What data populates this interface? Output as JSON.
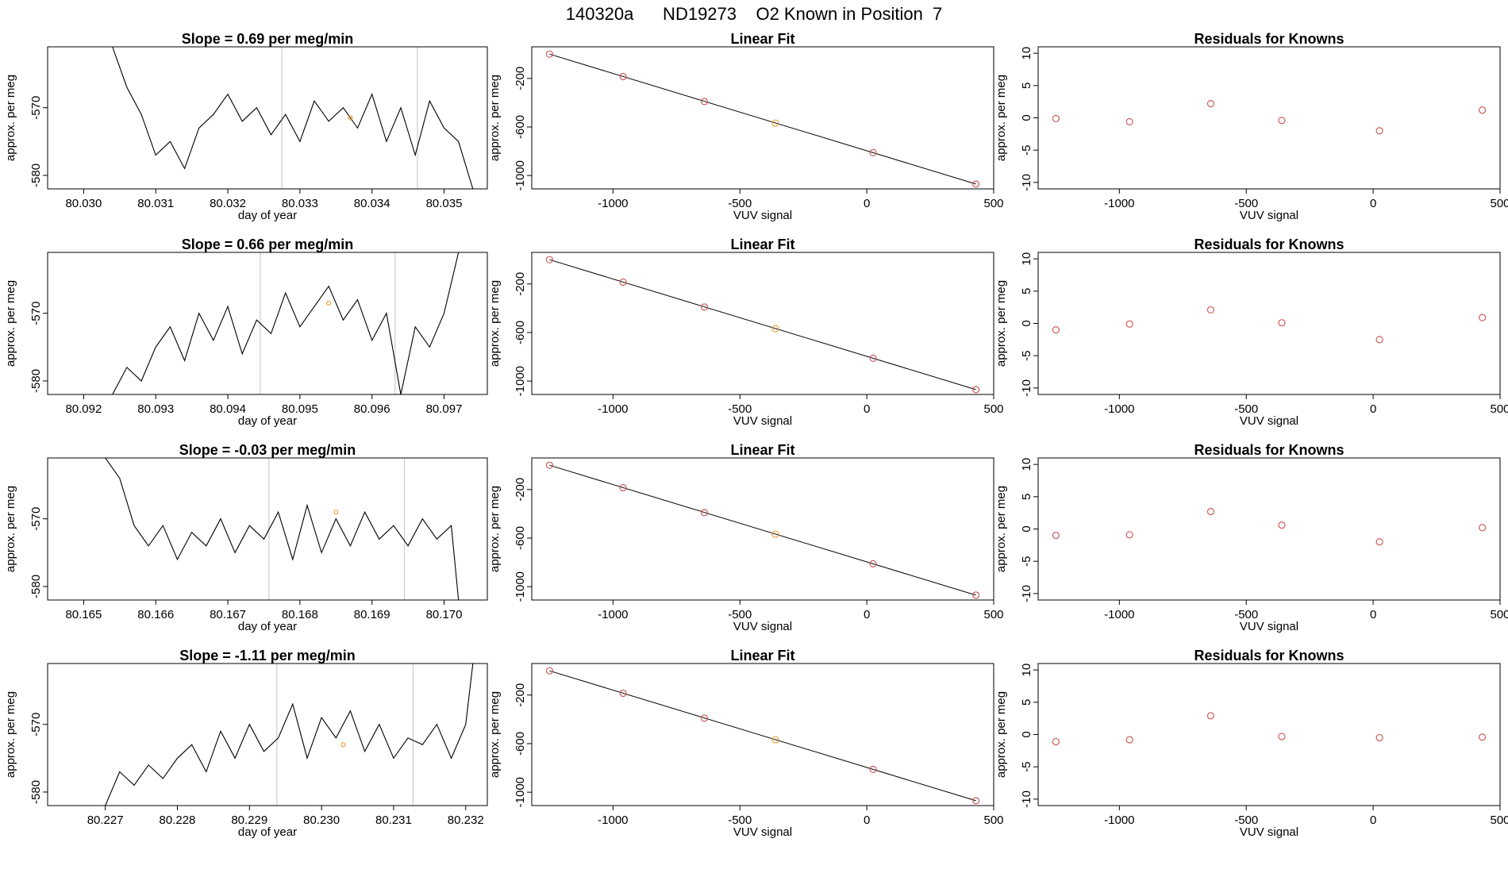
{
  "header": {
    "title": "140320a      ND19273    O2 Known in Position  7"
  },
  "colors": {
    "line": "#000000",
    "points": "#cd5c5c",
    "highlight": "#e8a33a",
    "vline": "#cccccc"
  },
  "chart_data": [
    {
      "type": "line",
      "title": "Slope =  0.69  per meg/min",
      "xlabel": "day of year",
      "ylabel": "approx. per meg",
      "xlim": [
        80.0295,
        80.0356
      ],
      "ylim": [
        -582,
        -561
      ],
      "xticks": [
        80.03,
        80.031,
        80.032,
        80.033,
        80.034,
        80.035
      ],
      "xtick_labels": [
        "80.030",
        "80.031",
        "80.032",
        "80.033",
        "80.034",
        "80.035"
      ],
      "yticks": [
        -570,
        -580
      ],
      "ytick_labels": [
        "-570",
        "-580"
      ],
      "vlines": [
        80.03275,
        80.03463
      ],
      "marker": {
        "x": 80.0337,
        "y": -571.5
      },
      "x": [
        80.0304,
        80.0306,
        80.0308,
        80.031,
        80.0312,
        80.0314,
        80.0316,
        80.0318,
        80.032,
        80.0322,
        80.0324,
        80.0326,
        80.0328,
        80.033,
        80.0332,
        80.0334,
        80.0336,
        80.0338,
        80.034,
        80.0342,
        80.0344,
        80.0346,
        80.0348,
        80.035,
        80.0352,
        80.0354
      ],
      "y": [
        -561,
        -567,
        -571,
        -577,
        -575,
        -579,
        -573,
        -571,
        -568,
        -572,
        -570,
        -574,
        -571,
        -575,
        -569,
        -572,
        -570,
        -573,
        -568,
        -575,
        -570,
        -577,
        -569,
        -573,
        -575,
        -582
      ]
    },
    {
      "type": "line",
      "title": "Slope =  0.66  per meg/min",
      "xlabel": "day of year",
      "ylabel": "approx. per meg",
      "xlim": [
        80.0915,
        80.0976
      ],
      "ylim": [
        -582,
        -561
      ],
      "xticks": [
        80.092,
        80.093,
        80.094,
        80.095,
        80.096,
        80.097
      ],
      "xtick_labels": [
        "80.092",
        "80.093",
        "80.094",
        "80.095",
        "80.096",
        "80.097"
      ],
      "yticks": [
        -570,
        -580
      ],
      "ytick_labels": [
        "-570",
        "-580"
      ],
      "vlines": [
        80.09445,
        80.09632
      ],
      "marker": {
        "x": 80.0954,
        "y": -568.5
      },
      "x": [
        80.0924,
        80.0926,
        80.0928,
        80.093,
        80.0932,
        80.0934,
        80.0936,
        80.0938,
        80.094,
        80.0942,
        80.0944,
        80.0946,
        80.0948,
        80.095,
        80.0952,
        80.0954,
        80.0956,
        80.0958,
        80.096,
        80.0962,
        80.0964,
        80.0966,
        80.0968,
        80.097,
        80.0972
      ],
      "y": [
        -582,
        -578,
        -580,
        -575,
        -572,
        -577,
        -570,
        -574,
        -569,
        -576,
        -571,
        -573,
        -567,
        -572,
        -569,
        -566,
        -571,
        -568,
        -574,
        -570,
        -582,
        -572,
        -575,
        -570,
        -561
      ]
    },
    {
      "type": "line",
      "title": "Slope =  -0.03  per meg/min",
      "xlabel": "day of year",
      "ylabel": "approx. per meg",
      "xlim": [
        80.1645,
        80.1706
      ],
      "ylim": [
        -582,
        -561
      ],
      "xticks": [
        80.165,
        80.166,
        80.167,
        80.168,
        80.169,
        80.17
      ],
      "xtick_labels": [
        "80.165",
        "80.166",
        "80.167",
        "80.168",
        "80.169",
        "80.170"
      ],
      "yticks": [
        -570,
        -580
      ],
      "ytick_labels": [
        "-570",
        "-580"
      ],
      "vlines": [
        80.16757,
        80.16945
      ],
      "marker": {
        "x": 80.1685,
        "y": -569
      },
      "x": [
        80.1653,
        80.1655,
        80.1657,
        80.1659,
        80.1661,
        80.1663,
        80.1665,
        80.1667,
        80.1669,
        80.1671,
        80.1673,
        80.1675,
        80.1677,
        80.1679,
        80.1681,
        80.1683,
        80.1685,
        80.1687,
        80.1689,
        80.1691,
        80.1693,
        80.1695,
        80.1697,
        80.1699,
        80.1701,
        80.1702
      ],
      "y": [
        -561,
        -564,
        -571,
        -574,
        -571,
        -576,
        -572,
        -574,
        -570,
        -575,
        -571,
        -573,
        -569,
        -576,
        -568,
        -575,
        -570,
        -574,
        -569,
        -573,
        -571,
        -574,
        -570,
        -573,
        -571,
        -582
      ]
    },
    {
      "type": "line",
      "title": "Slope =  -1.11  per meg/min",
      "xlabel": "day of year",
      "ylabel": "approx. per meg",
      "xlim": [
        80.2262,
        80.2323
      ],
      "ylim": [
        -582,
        -561
      ],
      "xticks": [
        80.227,
        80.228,
        80.229,
        80.23,
        80.231,
        80.232
      ],
      "xtick_labels": [
        "80.227",
        "80.228",
        "80.229",
        "80.230",
        "80.231",
        "80.232"
      ],
      "yticks": [
        -570,
        -580
      ],
      "ytick_labels": [
        "-570",
        "-580"
      ],
      "vlines": [
        80.22938,
        80.23127
      ],
      "marker": {
        "x": 80.2303,
        "y": -573
      },
      "x": [
        80.227,
        80.2272,
        80.2274,
        80.2276,
        80.2278,
        80.228,
        80.2282,
        80.2284,
        80.2286,
        80.2288,
        80.229,
        80.2292,
        80.2294,
        80.2296,
        80.2298,
        80.23,
        80.2302,
        80.2304,
        80.2306,
        80.2308,
        80.231,
        80.2312,
        80.2314,
        80.2316,
        80.2318,
        80.232,
        80.2321
      ],
      "y": [
        -582,
        -577,
        -579,
        -576,
        -578,
        -575,
        -573,
        -577,
        -571,
        -575,
        -570,
        -574,
        -572,
        -567,
        -575,
        -569,
        -572,
        -568,
        -574,
        -570,
        -575,
        -572,
        -573,
        -570,
        -575,
        -570,
        -561
      ]
    },
    {
      "type": "scatter",
      "title": "Linear Fit",
      "xlabel": "VUV signal",
      "ylabel": "approx. per meg",
      "xlim": [
        -1320,
        500
      ],
      "ylim": [
        -1110,
        60
      ],
      "xticks": [
        -1000,
        -500,
        0,
        500
      ],
      "xtick_labels": [
        "-1000",
        "-500",
        "0",
        "500"
      ],
      "yticks": [
        -200,
        -600,
        -1000
      ],
      "ytick_labels": [
        "-200",
        "-600",
        "-1000"
      ],
      "fit_line": [
        [
          -1250,
          0
        ],
        [
          430,
          -1070
        ]
      ],
      "highlight_index": 3,
      "x": [
        -1250,
        -960,
        -640,
        -360,
        25,
        430
      ],
      "y": [
        0,
        -185,
        -390,
        -568,
        -812,
        -1070
      ]
    },
    {
      "type": "scatter",
      "title": "Linear Fit",
      "xlabel": "VUV signal",
      "ylabel": "approx. per meg",
      "xlim": [
        -1320,
        500
      ],
      "ylim": [
        -1110,
        60
      ],
      "xticks": [
        -1000,
        -500,
        0,
        500
      ],
      "xtick_labels": [
        "-1000",
        "-500",
        "0",
        "500"
      ],
      "yticks": [
        -200,
        -600,
        -1000
      ],
      "ytick_labels": [
        "-200",
        "-600",
        "-1000"
      ],
      "fit_line": [
        [
          -1250,
          0
        ],
        [
          430,
          -1070
        ]
      ],
      "highlight_index": 3,
      "x": [
        -1250,
        -960,
        -640,
        -360,
        25,
        430
      ],
      "y": [
        0,
        -185,
        -390,
        -568,
        -812,
        -1070
      ]
    },
    {
      "type": "scatter",
      "title": "Linear Fit",
      "xlabel": "VUV signal",
      "ylabel": "approx. per meg",
      "xlim": [
        -1320,
        500
      ],
      "ylim": [
        -1110,
        60
      ],
      "xticks": [
        -1000,
        -500,
        0,
        500
      ],
      "xtick_labels": [
        "-1000",
        "-500",
        "0",
        "500"
      ],
      "yticks": [
        -200,
        -600,
        -1000
      ],
      "ytick_labels": [
        "-200",
        "-600",
        "-1000"
      ],
      "fit_line": [
        [
          -1250,
          0
        ],
        [
          430,
          -1070
        ]
      ],
      "highlight_index": 3,
      "x": [
        -1250,
        -960,
        -640,
        -360,
        25,
        430
      ],
      "y": [
        0,
        -185,
        -390,
        -568,
        -812,
        -1070
      ]
    },
    {
      "type": "scatter",
      "title": "Linear Fit",
      "xlabel": "VUV signal",
      "ylabel": "approx. per meg",
      "xlim": [
        -1320,
        500
      ],
      "ylim": [
        -1110,
        60
      ],
      "xticks": [
        -1000,
        -500,
        0,
        500
      ],
      "xtick_labels": [
        "-1000",
        "-500",
        "0",
        "500"
      ],
      "yticks": [
        -200,
        -600,
        -1000
      ],
      "ytick_labels": [
        "-200",
        "-600",
        "-1000"
      ],
      "fit_line": [
        [
          -1250,
          0
        ],
        [
          430,
          -1070
        ]
      ],
      "highlight_index": 3,
      "x": [
        -1250,
        -960,
        -640,
        -360,
        25,
        430
      ],
      "y": [
        0,
        -185,
        -390,
        -568,
        -812,
        -1070
      ]
    },
    {
      "type": "scatter",
      "title": "Residuals for Knowns",
      "xlabel": "VUV signal",
      "ylabel": "approx. per meg",
      "xlim": [
        -1320,
        500
      ],
      "ylim": [
        -11,
        11
      ],
      "xticks": [
        -1000,
        -500,
        0,
        500
      ],
      "xtick_labels": [
        "-1000",
        "-500",
        "0",
        "500"
      ],
      "yticks": [
        10,
        5,
        0,
        -5,
        -10
      ],
      "ytick_labels": [
        "10",
        "5",
        "0",
        "-5",
        "-10"
      ],
      "x": [
        -1250,
        -960,
        -640,
        -360,
        25,
        430
      ],
      "y": [
        -0.1,
        -0.6,
        2.2,
        -0.4,
        -2.0,
        1.2
      ]
    },
    {
      "type": "scatter",
      "title": "Residuals for Knowns",
      "xlabel": "VUV signal",
      "ylabel": "approx. per meg",
      "xlim": [
        -1320,
        500
      ],
      "ylim": [
        -11,
        11
      ],
      "xticks": [
        -1000,
        -500,
        0,
        500
      ],
      "xtick_labels": [
        "-1000",
        "-500",
        "0",
        "500"
      ],
      "yticks": [
        10,
        5,
        0,
        -5,
        -10
      ],
      "ytick_labels": [
        "10",
        "5",
        "0",
        "-5",
        "-10"
      ],
      "x": [
        -1250,
        -960,
        -640,
        -360,
        25,
        430
      ],
      "y": [
        -1.0,
        -0.1,
        2.1,
        0.1,
        -2.5,
        0.9
      ]
    },
    {
      "type": "scatter",
      "title": "Residuals for Knowns",
      "xlabel": "VUV signal",
      "ylabel": "approx. per meg",
      "xlim": [
        -1320,
        500
      ],
      "ylim": [
        -11,
        11
      ],
      "xticks": [
        -1000,
        -500,
        0,
        500
      ],
      "xtick_labels": [
        "-1000",
        "-500",
        "0",
        "500"
      ],
      "yticks": [
        10,
        5,
        0,
        -5,
        -10
      ],
      "ytick_labels": [
        "10",
        "5",
        "0",
        "-5",
        "-10"
      ],
      "x": [
        -1250,
        -960,
        -640,
        -360,
        25,
        430
      ],
      "y": [
        -1.0,
        -0.9,
        2.7,
        0.6,
        -2.0,
        0.2
      ]
    },
    {
      "type": "scatter",
      "title": "Residuals for Knowns",
      "xlabel": "VUV signal",
      "ylabel": "approx. per meg",
      "xlim": [
        -1320,
        500
      ],
      "ylim": [
        -11,
        11
      ],
      "xticks": [
        -1000,
        -500,
        0,
        500
      ],
      "xtick_labels": [
        "-1000",
        "-500",
        "0",
        "500"
      ],
      "yticks": [
        10,
        5,
        0,
        -5,
        -10
      ],
      "ytick_labels": [
        "10",
        "5",
        "0",
        "-5",
        "-10"
      ],
      "x": [
        -1250,
        -960,
        -640,
        -360,
        25,
        430
      ],
      "y": [
        -1.1,
        -0.8,
        2.9,
        -0.3,
        -0.5,
        -0.4
      ]
    }
  ]
}
